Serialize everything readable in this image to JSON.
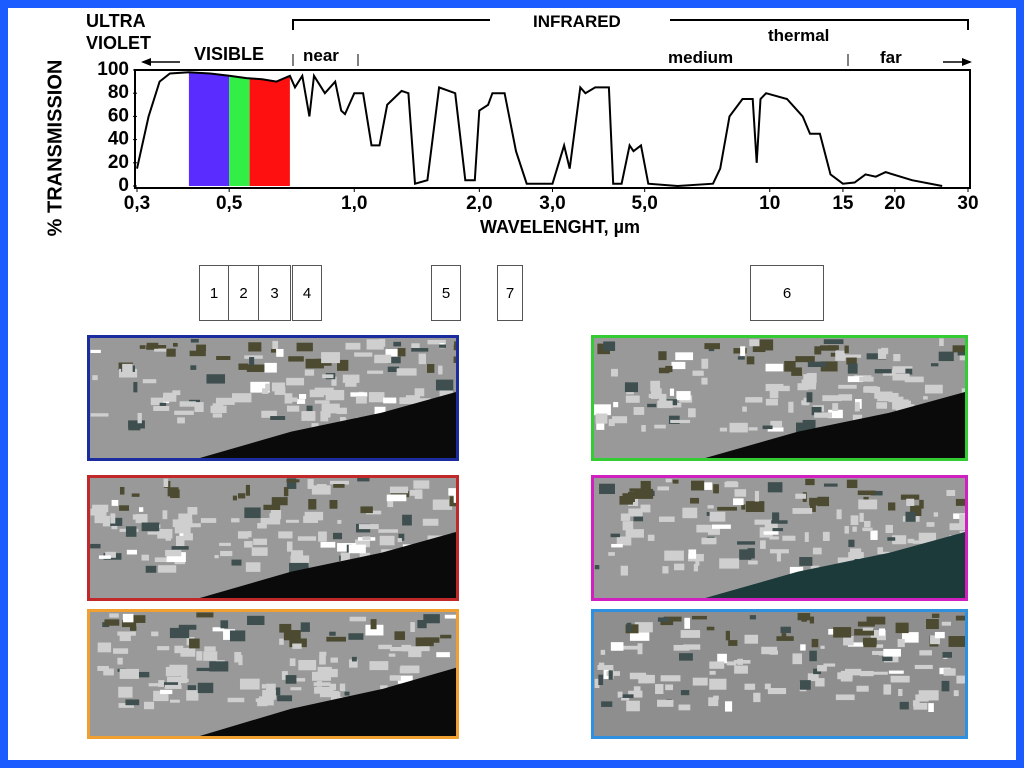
{
  "chart_data": {
    "type": "line",
    "ylabel": "% TRANSMISSION",
    "xlabel": "WAVELENGHT, µm",
    "log_x": true,
    "color": "#000000",
    "x": [
      0.3,
      0.32,
      0.34,
      0.36,
      0.4,
      0.45,
      0.5,
      0.55,
      0.6,
      0.65,
      0.7,
      0.72,
      0.75,
      0.78,
      0.8,
      0.85,
      0.9,
      0.93,
      0.95,
      1.0,
      1.05,
      1.1,
      1.15,
      1.2,
      1.3,
      1.35,
      1.4,
      1.5,
      1.6,
      1.75,
      1.85,
      1.95,
      2.0,
      2.1,
      2.15,
      2.3,
      2.45,
      2.6,
      3.0,
      3.2,
      3.3,
      3.5,
      3.6,
      3.8,
      4.1,
      4.2,
      4.4,
      4.6,
      4.7,
      4.9,
      5.1,
      6.0,
      7.3,
      7.6,
      8.0,
      8.6,
      9.1,
      9.3,
      9.5,
      9.8,
      11,
      12,
      12.5,
      13.2,
      14,
      15,
      16,
      17,
      18,
      19,
      22,
      26
    ],
    "values": [
      15,
      60,
      90,
      97,
      98,
      97,
      95,
      93,
      92,
      90,
      95,
      85,
      95,
      60,
      95,
      80,
      90,
      65,
      62,
      80,
      80,
      35,
      35,
      70,
      82,
      80,
      2,
      5,
      85,
      80,
      5,
      5,
      65,
      70,
      80,
      80,
      30,
      2,
      2,
      35,
      15,
      85,
      80,
      85,
      85,
      2,
      2,
      35,
      30,
      35,
      2,
      0,
      2,
      15,
      60,
      75,
      75,
      20,
      75,
      80,
      75,
      60,
      45,
      45,
      10,
      2,
      3,
      10,
      8,
      12,
      5,
      0
    ],
    "visible_bands": [
      {
        "range": [
          0.4,
          0.5
        ],
        "color": "#5a2cff"
      },
      {
        "range": [
          0.5,
          0.56
        ],
        "color": "#33ee44"
      },
      {
        "range": [
          0.56,
          0.7
        ],
        "color": "#ff1010"
      }
    ],
    "xlim": [
      0.3,
      30
    ],
    "xticks": [
      {
        "value": 0.3,
        "label": "0,3"
      },
      {
        "value": 0.5,
        "label": "0,5"
      },
      {
        "value": 1.0,
        "label": "1,0"
      },
      {
        "value": 2.0,
        "label": "2,0"
      },
      {
        "value": 3.0,
        "label": "3,0"
      },
      {
        "value": 5.0,
        "label": "5,0"
      },
      10,
      15,
      20,
      30
    ],
    "ylim": [
      0,
      100
    ],
    "yticks": [
      0,
      20,
      40,
      60,
      80,
      100
    ],
    "annotations": {
      "uv": "ULTRA VIOLET",
      "visible": "VISIBLE",
      "infrared": "INFRARED",
      "near": "near",
      "medium": "medium",
      "thermal": "thermal",
      "far": "far"
    }
  },
  "band_boxes": [
    "1",
    "2",
    "3",
    "4",
    "5",
    "7",
    "6"
  ]
}
